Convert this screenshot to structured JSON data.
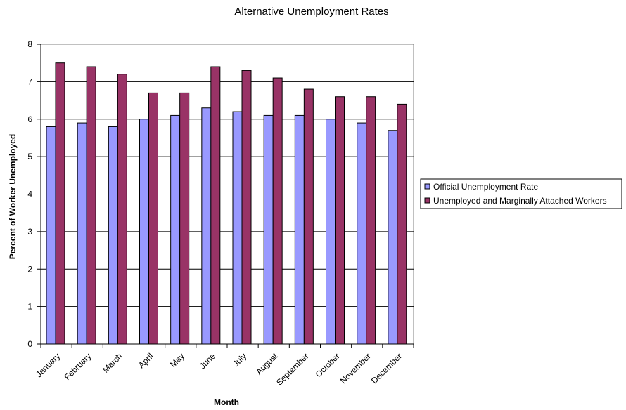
{
  "chart_data": {
    "type": "bar",
    "title": "Alternative Unemployment Rates",
    "xlabel": "Month",
    "ylabel": "Percent of Worker Unemployed",
    "ylim": [
      0,
      8
    ],
    "yticks": [
      0,
      1,
      2,
      3,
      4,
      5,
      6,
      7,
      8
    ],
    "grid": true,
    "legend_position": "right",
    "categories": [
      "January",
      "February",
      "March",
      "April",
      "May",
      "June",
      "July",
      "August",
      "September",
      "October",
      "November",
      "December"
    ],
    "series": [
      {
        "name": "Official Unemployment Rate",
        "color": "#9999ff",
        "values": [
          5.8,
          5.9,
          5.8,
          6.0,
          6.1,
          6.3,
          6.2,
          6.1,
          6.1,
          6.0,
          5.9,
          5.7
        ]
      },
      {
        "name": "Unemployed and Marginally Attached Workers",
        "color": "#993366",
        "values": [
          7.5,
          7.4,
          7.2,
          6.7,
          6.7,
          7.4,
          7.3,
          7.1,
          6.8,
          6.6,
          6.6,
          6.4
        ]
      }
    ]
  }
}
